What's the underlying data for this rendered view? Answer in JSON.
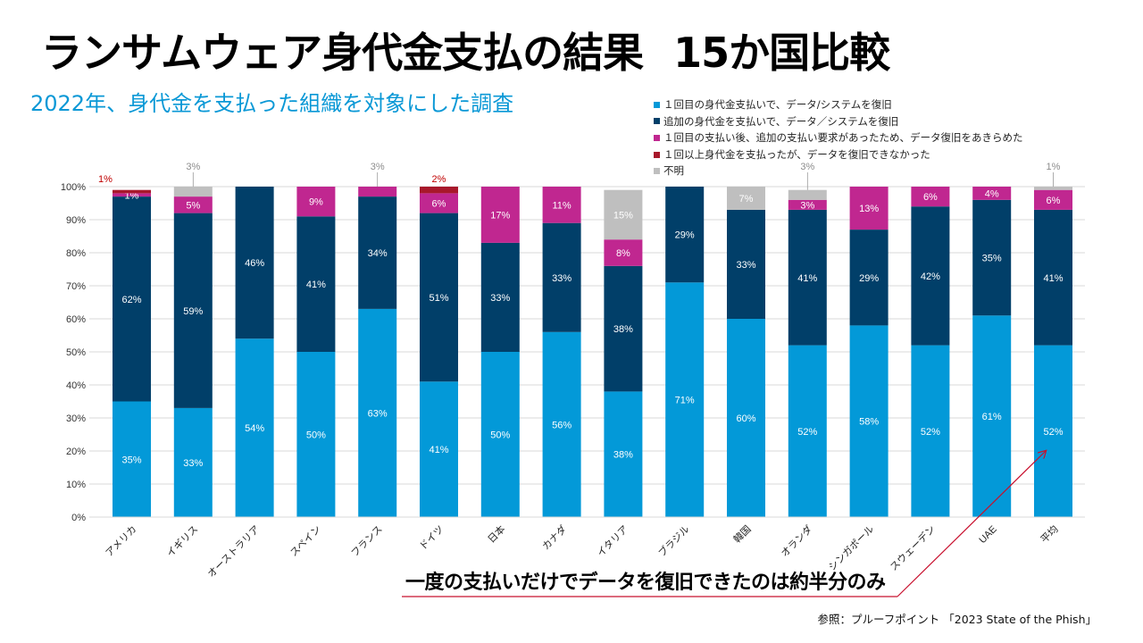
{
  "title": {
    "main": "ランサムウェア身代金支払の結果",
    "suffix": "15か国比較"
  },
  "subtitle": "2022年、身代金を支払った組織を対象にした調査",
  "callout": "一度の支払いだけでデータを復旧できたのは約半分のみ",
  "source": "参照：プルーフポイント 「2023 State of the Phish」",
  "colors": {
    "first_payment_recovered": "#0399d8",
    "additional_payment_recovered": "#013f69",
    "gave_up": "#c02790",
    "not_recovered": "#a8182b",
    "unknown": "#bfbfbf",
    "arrow": "#c8102e"
  },
  "chart_data": {
    "type": "bar",
    "stacked": true,
    "title": "ランサムウェア身代金支払の結果 15か国比較",
    "xlabel": "",
    "ylabel": "",
    "ylim": [
      0,
      100
    ],
    "yticks": [
      "0%",
      "10%",
      "20%",
      "30%",
      "40%",
      "50%",
      "60%",
      "70%",
      "80%",
      "90%",
      "100%"
    ],
    "grid": true,
    "legend_position": "top-right",
    "categories": [
      "アメリカ",
      "イギリス",
      "オーストラリア",
      "スペイン",
      "フランス",
      "ドイツ",
      "日本",
      "カナダ",
      "イタリア",
      "ブラジル",
      "韓国",
      "オランダ",
      "シンガポール",
      "スウェーデン",
      "UAE",
      "平均"
    ],
    "series": [
      {
        "key": "first_payment_recovered",
        "name": "１回目の身代金支払いで、データ/システムを復旧",
        "values": [
          35,
          33,
          54,
          50,
          63,
          41,
          50,
          56,
          38,
          71,
          60,
          52,
          58,
          52,
          61,
          52
        ]
      },
      {
        "key": "additional_payment_recovered",
        "name": "追加の身代金を支払いで、データ／システムを復旧",
        "values": [
          62,
          59,
          46,
          41,
          34,
          51,
          33,
          33,
          38,
          29,
          33,
          41,
          29,
          42,
          35,
          41
        ]
      },
      {
        "key": "gave_up",
        "name": "１回目の支払い後、追加の支払い要求があったため、データ復旧をあきらめた",
        "values": [
          1,
          5,
          0,
          9,
          3,
          6,
          17,
          11,
          8,
          0,
          0,
          3,
          13,
          6,
          4,
          6
        ]
      },
      {
        "key": "not_recovered",
        "name": "１回以上身代金を支払ったが、データを復旧できなかった",
        "values": [
          1,
          0,
          0,
          0,
          0,
          2,
          0,
          0,
          0,
          0,
          0,
          0,
          0,
          0,
          0,
          0
        ]
      },
      {
        "key": "unknown",
        "name": "不明",
        "values": [
          0,
          3,
          0,
          0,
          0,
          0,
          0,
          0,
          15,
          0,
          7,
          3,
          0,
          0,
          0,
          1
        ]
      }
    ],
    "outside_labels": [
      {
        "category": "アメリカ",
        "series": "not_recovered",
        "text": "1%"
      },
      {
        "category": "イギリス",
        "series": "unknown",
        "text": "3%"
      },
      {
        "category": "フランス",
        "series": "gave_up",
        "text": "3%"
      },
      {
        "category": "ドイツ",
        "series": "not_recovered",
        "text": "2%"
      },
      {
        "category": "オランダ",
        "series": "unknown",
        "text": "3%"
      },
      {
        "category": "平均",
        "series": "unknown",
        "text": "1%"
      }
    ]
  }
}
